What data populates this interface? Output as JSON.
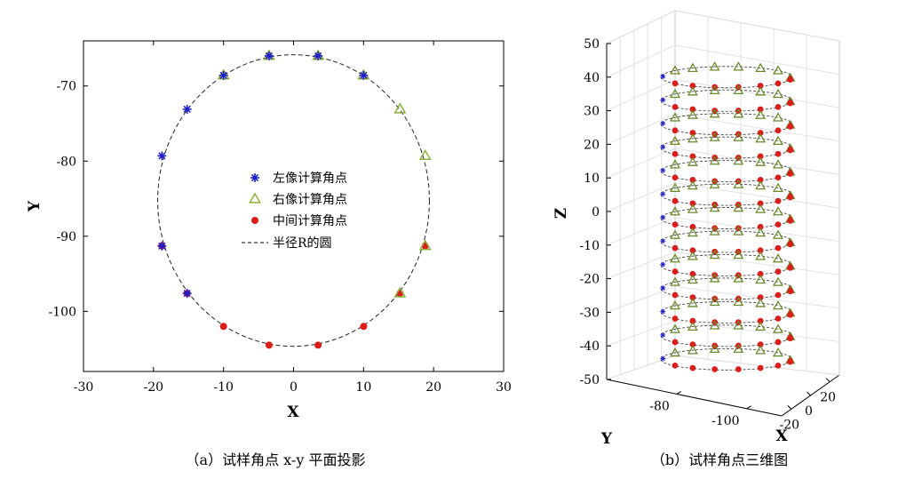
{
  "chart_data": [
    {
      "type": "scatter",
      "panel": "a",
      "caption": "（a）试样角点 x-y 平面投影",
      "xlabel": "X",
      "ylabel": "Y",
      "xlim": [
        -30,
        30
      ],
      "ylim": [
        -108,
        -64
      ],
      "xticks": [
        -30,
        -20,
        -10,
        0,
        10,
        20,
        30
      ],
      "yticks": [
        -70,
        -80,
        -90,
        -100
      ],
      "xtick_labels": [
        "-30",
        "-20",
        "-10",
        "0",
        "10",
        "20",
        "30"
      ],
      "ytick_labels": [
        "-70",
        "-80",
        "-90",
        "-100"
      ],
      "grid": false,
      "legend_position": "center",
      "circle": {
        "name": "半径R的圆",
        "center": [
          0,
          -85.25
        ],
        "radius": 19.4
      },
      "series": [
        {
          "name": "左像计算角点",
          "marker": "asterisk",
          "color": "#1f1fc8",
          "points": [
            [
              -3.5,
              -66.0
            ],
            [
              3.5,
              -66.0
            ],
            [
              -10,
              -68.6
            ],
            [
              10,
              -68.6
            ],
            [
              -15.2,
              -73.1
            ],
            [
              -18.8,
              -79.3
            ],
            [
              -18.8,
              -91.3
            ],
            [
              -15.2,
              -97.6
            ]
          ]
        },
        {
          "name": "右像计算角点",
          "marker": "triangle",
          "color": "#8fb03a",
          "points": [
            [
              -3.5,
              -66.0
            ],
            [
              3.5,
              -66.0
            ],
            [
              -10,
              -68.6
            ],
            [
              10,
              -68.6
            ],
            [
              15.2,
              -73.1
            ],
            [
              18.8,
              -79.3
            ],
            [
              18.8,
              -91.3
            ],
            [
              15.2,
              -97.6
            ]
          ]
        },
        {
          "name": "中间计算角点",
          "marker": "dot",
          "color": "#dd1c1c",
          "points": [
            [
              -18.8,
              -91.3
            ],
            [
              -15.2,
              -97.6
            ],
            [
              -10,
              -102.0
            ],
            [
              -3.5,
              -104.5
            ],
            [
              3.5,
              -104.5
            ],
            [
              10,
              -102.0
            ],
            [
              15.2,
              -97.6
            ],
            [
              18.8,
              -91.3
            ]
          ]
        }
      ]
    },
    {
      "type": "scatter3d",
      "panel": "b",
      "caption": "（b）试样角点三维图",
      "xlabel": "X",
      "ylabel": "Y",
      "zlabel": "Z",
      "zlim": [
        -50,
        50
      ],
      "zticks": [
        50,
        40,
        30,
        20,
        10,
        0,
        -10,
        -20,
        -30,
        -40,
        -50
      ],
      "ztick_labels": [
        "50",
        "40",
        "30",
        "20",
        "10",
        "0",
        "-10",
        "-20",
        "-30",
        "-40",
        "-50"
      ],
      "xticks": [
        -20,
        0,
        20
      ],
      "xtick_labels": [
        "-20",
        "0",
        "20"
      ],
      "yticks": [
        -80,
        -100
      ],
      "ytick_labels": [
        "-80",
        "-100"
      ],
      "grid": true,
      "layers_z": [
        40,
        33,
        26,
        19,
        12,
        5,
        -2,
        -9,
        -16,
        -23,
        -30,
        -37,
        -44
      ],
      "layer_markers": [
        {
          "x": -18.8,
          "m": "asterisk"
        },
        {
          "x": -15.2,
          "m": "triangle"
        },
        {
          "x": -10.0,
          "m": "triangle"
        },
        {
          "x": -3.5,
          "m": "triangle"
        },
        {
          "x": 3.5,
          "m": "triangle"
        },
        {
          "x": 10.0,
          "m": "triangle"
        },
        {
          "x": 15.2,
          "m": "triangle"
        },
        {
          "x": 18.8,
          "m": "triangle"
        }
      ],
      "front_markers": [
        -15.2,
        -10,
        -3.5,
        3.5,
        10,
        15.2,
        18.8
      ]
    }
  ]
}
